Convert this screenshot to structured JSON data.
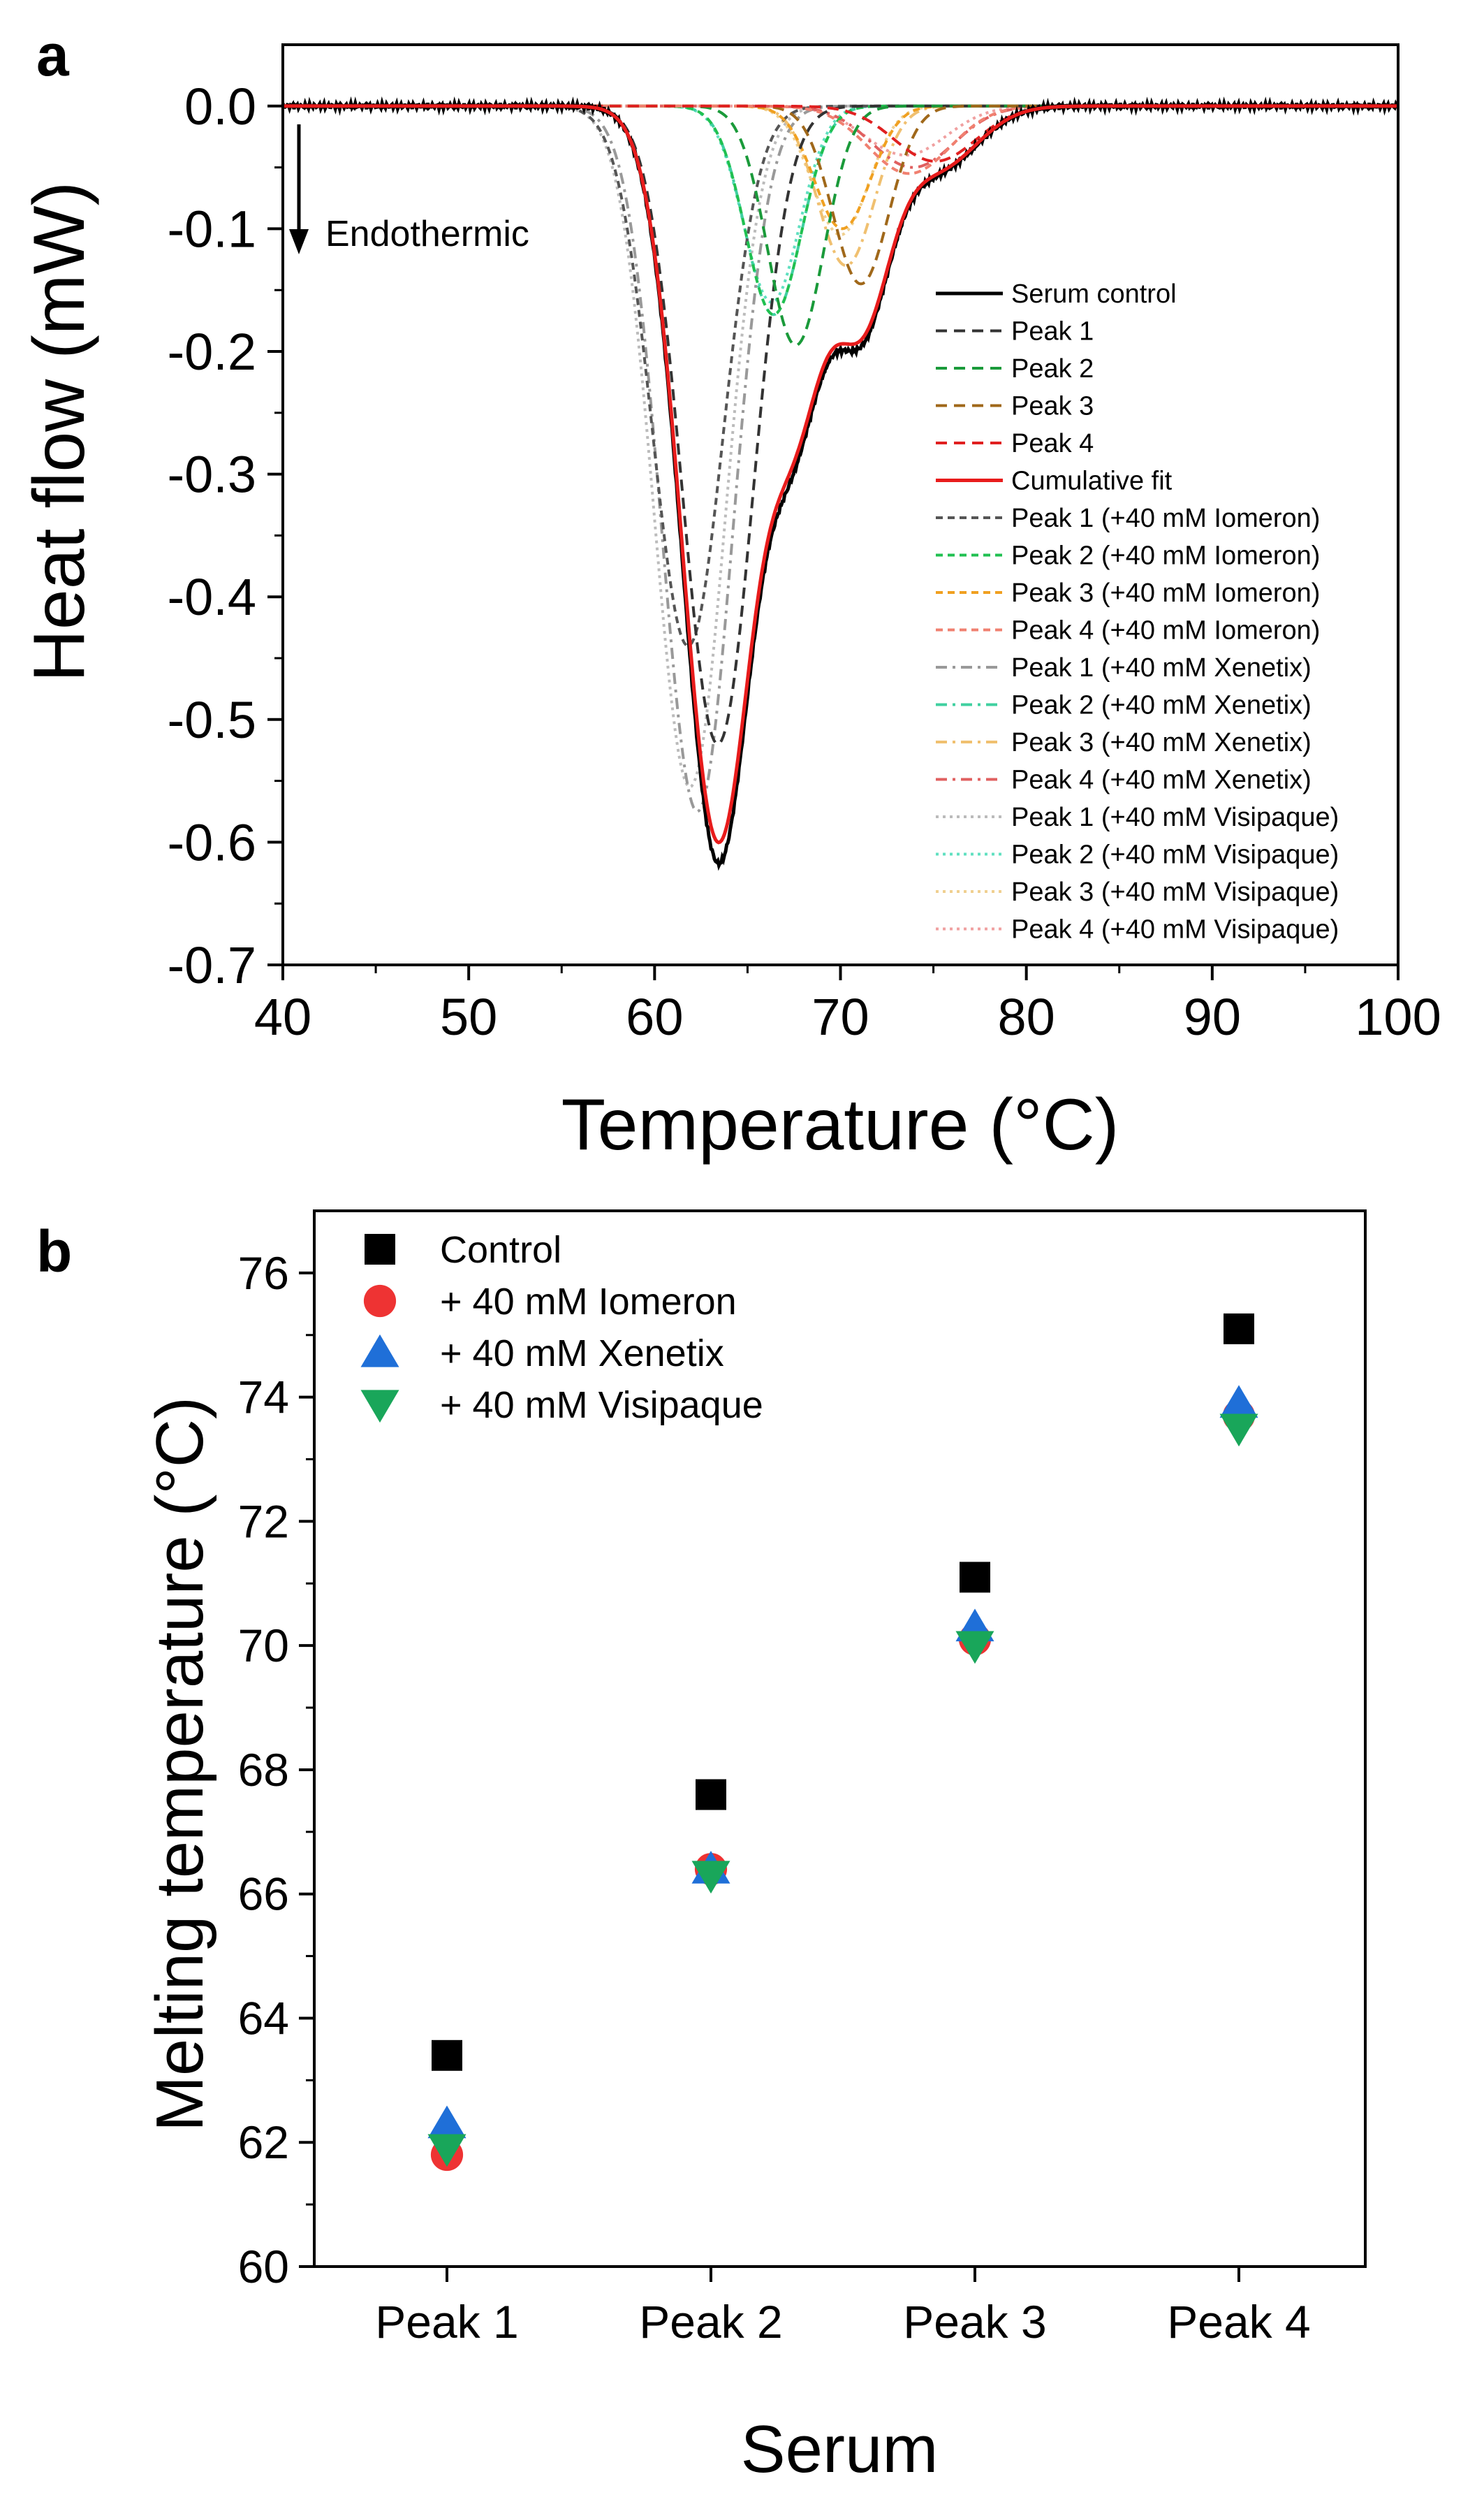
{
  "panel_a": {
    "letter": "a",
    "annotation": "Endothermic",
    "legend": [
      {
        "label": "Serum control",
        "color": "#000000",
        "style": "solid",
        "width": 5
      },
      {
        "label": "Peak 1",
        "color": "#333333",
        "style": "dash",
        "width": 4
      },
      {
        "label": "Peak 2",
        "color": "#1a9a3a",
        "style": "dash",
        "width": 4
      },
      {
        "label": "Peak 3",
        "color": "#a0681a",
        "style": "dash",
        "width": 4
      },
      {
        "label": "Peak 4",
        "color": "#e02020",
        "style": "dash",
        "width": 4
      },
      {
        "label": "Cumulative fit",
        "color": "#e81c1c",
        "style": "solid",
        "width": 5
      },
      {
        "label": "Peak 1 (+40 mM Iomeron)",
        "color": "#555555",
        "style": "shortdash",
        "width": 4
      },
      {
        "label": "Peak 2 (+40 mM Iomeron)",
        "color": "#20c050",
        "style": "shortdash",
        "width": 4
      },
      {
        "label": "Peak 3 (+40 mM Iomeron)",
        "color": "#f0a020",
        "style": "shortdash",
        "width": 4
      },
      {
        "label": "Peak 4 (+40 mM Iomeron)",
        "color": "#f08070",
        "style": "shortdash",
        "width": 4
      },
      {
        "label": "Peak 1 (+40 mM Xenetix)",
        "color": "#999999",
        "style": "dashdot",
        "width": 4
      },
      {
        "label": "Peak 2 (+40 mM Xenetix)",
        "color": "#40d0a0",
        "style": "dashdot",
        "width": 4
      },
      {
        "label": "Peak 3 (+40 mM Xenetix)",
        "color": "#f0c070",
        "style": "dashdot",
        "width": 4
      },
      {
        "label": "Peak 4 (+40 mM Xenetix)",
        "color": "#e06060",
        "style": "dashdot",
        "width": 4
      },
      {
        "label": "Peak 1 (+40 mM Visipaque)",
        "color": "#bbbbbb",
        "style": "dot",
        "width": 4
      },
      {
        "label": "Peak 2 (+40 mM Visipaque)",
        "color": "#60e0c0",
        "style": "dot",
        "width": 4
      },
      {
        "label": "Peak 3 (+40 mM Visipaque)",
        "color": "#f0d090",
        "style": "dot",
        "width": 4
      },
      {
        "label": "Peak 4 (+40 mM Visipaque)",
        "color": "#f0a0a0",
        "style": "dot",
        "width": 4
      }
    ]
  },
  "panel_b": {
    "letter": "b",
    "legend": [
      {
        "label": "Control",
        "color": "#000000",
        "marker": "square"
      },
      {
        "label": "+ 40 mM Iomeron",
        "color": "#ee3333",
        "marker": "circle"
      },
      {
        "label": "+ 40 mM Xenetix",
        "color": "#1f6fd8",
        "marker": "triangle-up"
      },
      {
        "label": "+ 40 mM Visipaque",
        "color": "#19a65a",
        "marker": "triangle-down"
      }
    ]
  },
  "chart_data": [
    {
      "type": "line",
      "xlabel": "Temperature (°C)",
      "ylabel": "Heat flow (mW)",
      "xlim": [
        40,
        100
      ],
      "ylim": [
        -0.7,
        0.05
      ],
      "xticks": [
        40,
        50,
        60,
        70,
        80,
        90,
        100
      ],
      "yticks": [
        0.0,
        -0.1,
        -0.2,
        -0.3,
        -0.4,
        -0.5,
        -0.6,
        -0.7
      ],
      "ytick_labels": [
        "0.0",
        "-0.1",
        "-0.2",
        "-0.3",
        "-0.4",
        "-0.5",
        "-0.6",
        "-0.7"
      ],
      "series": [
        {
          "name": "Serum control",
          "peak_center": 63.4,
          "peak_min": -0.617
        },
        {
          "name": "Cumulative fit",
          "peak_center": 63.4,
          "peak_min": -0.6
        },
        {
          "name": "Peak 1",
          "peak_center": 63.4,
          "peak_min": -0.52,
          "width": 1.9
        },
        {
          "name": "Peak 2",
          "peak_center": 67.6,
          "peak_min": -0.195,
          "width": 1.5
        },
        {
          "name": "Peak 3",
          "peak_center": 71.1,
          "peak_min": -0.145,
          "width": 1.5
        },
        {
          "name": "Peak 4",
          "peak_center": 75.1,
          "peak_min": -0.045,
          "width": 2.2
        },
        {
          "name": "Peak 1 (+40 mM Iomeron)",
          "peak_center": 61.8,
          "peak_min": -0.44,
          "width": 1.9
        },
        {
          "name": "Peak 2 (+40 mM Iomeron)",
          "peak_center": 66.4,
          "peak_min": -0.17,
          "width": 1.5
        },
        {
          "name": "Peak 3 (+40 mM Iomeron)",
          "peak_center": 70.1,
          "peak_min": -0.1,
          "width": 1.5
        },
        {
          "name": "Peak 4 (+40 mM Iomeron)",
          "peak_center": 73.7,
          "peak_min": -0.055,
          "width": 2.2
        },
        {
          "name": "Peak 1 (+40 mM Xenetix)",
          "peak_center": 62.3,
          "peak_min": -0.575,
          "width": 1.9
        },
        {
          "name": "Peak 2 (+40 mM Xenetix)",
          "peak_center": 66.4,
          "peak_min": -0.17,
          "width": 1.5
        },
        {
          "name": "Peak 3 (+40 mM Xenetix)",
          "peak_center": 70.3,
          "peak_min": -0.13,
          "width": 1.5
        },
        {
          "name": "Peak 4 (+40 mM Xenetix)",
          "peak_center": 73.9,
          "peak_min": -0.05,
          "width": 2.2
        },
        {
          "name": "Peak 1 (+40 mM Visipaque)",
          "peak_center": 61.9,
          "peak_min": -0.555,
          "width": 1.9
        },
        {
          "name": "Peak 2 (+40 mM Visipaque)",
          "peak_center": 66.3,
          "peak_min": -0.16,
          "width": 1.5
        },
        {
          "name": "Peak 3 (+40 mM Visipaque)",
          "peak_center": 70.0,
          "peak_min": -0.105,
          "width": 1.5
        },
        {
          "name": "Peak 4 (+40 mM Visipaque)",
          "peak_center": 73.5,
          "peak_min": -0.04,
          "width": 2.2
        }
      ]
    },
    {
      "type": "scatter",
      "xlabel": "Serum",
      "ylabel": "Melting temperature (°C)",
      "categories": [
        "Peak 1",
        "Peak 2",
        "Peak 3",
        "Peak 4"
      ],
      "ylim": [
        60,
        77
      ],
      "yticks": [
        60,
        62,
        64,
        66,
        68,
        70,
        72,
        74,
        76
      ],
      "series": [
        {
          "name": "Control",
          "values": [
            63.4,
            67.6,
            71.1,
            75.1
          ]
        },
        {
          "name": "+ 40 mM Iomeron",
          "values": [
            61.8,
            66.4,
            70.1,
            73.7
          ]
        },
        {
          "name": "+ 40 mM Xenetix",
          "values": [
            62.3,
            66.4,
            70.3,
            73.9
          ]
        },
        {
          "name": "+ 40 mM Visipaque",
          "values": [
            61.9,
            66.3,
            70.0,
            73.5
          ]
        }
      ]
    }
  ]
}
